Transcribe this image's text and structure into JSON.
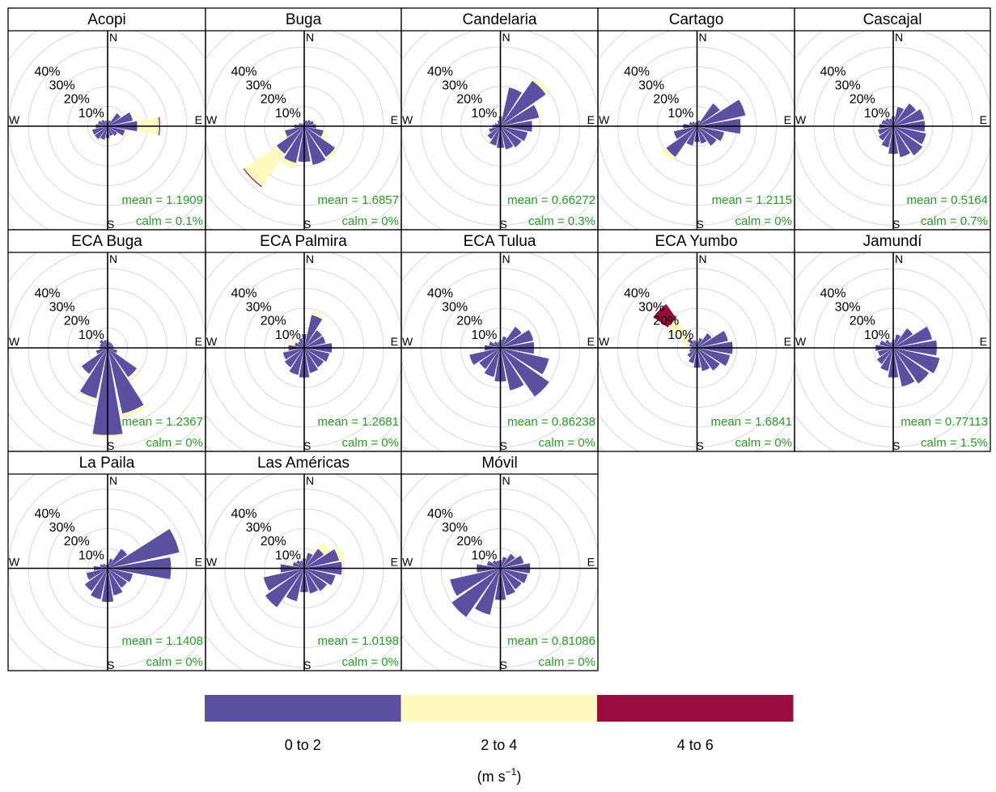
{
  "chart_data": {
    "type": "windrose",
    "directions": [
      "N",
      "NNE",
      "NE",
      "ENE",
      "E",
      "ESE",
      "SE",
      "SSE",
      "S",
      "SSW",
      "SW",
      "WSW",
      "W",
      "WNW",
      "NW",
      "NNW"
    ],
    "compass_labels": {
      "n": "N",
      "e": "E",
      "s": "S",
      "w": "W"
    },
    "ring_labels": [
      "10%",
      "20%",
      "30%",
      "40%"
    ],
    "ring_values": [
      10,
      20,
      30,
      40
    ],
    "rmax": 50,
    "bins": [
      {
        "label": "0 to 2",
        "color": "#5b4fa0"
      },
      {
        "label": "2 to 4",
        "color": "#fefac0"
      },
      {
        "label": "4 to 6",
        "color": "#990c3e"
      }
    ],
    "unit_label": "(m s",
    "unit_exponent": "−1",
    "unit_close": ")",
    "panels": [
      {
        "name": "Acopi",
        "mean": "mean = 1.1909",
        "calm": "calm = 0.1%",
        "freq": [
          [
            2,
            0,
            0
          ],
          [
            3,
            0,
            0
          ],
          [
            8,
            0,
            0
          ],
          [
            13,
            1,
            0
          ],
          [
            15,
            11,
            0.5
          ],
          [
            9,
            1,
            0
          ],
          [
            6,
            0,
            0
          ],
          [
            5,
            0,
            0
          ],
          [
            6,
            0,
            0
          ],
          [
            7,
            0,
            0
          ],
          [
            8,
            0,
            0
          ],
          [
            8,
            0,
            0
          ],
          [
            6,
            0,
            0
          ],
          [
            5,
            0,
            0
          ],
          [
            4,
            0,
            0
          ],
          [
            3,
            0,
            0
          ]
        ]
      },
      {
        "name": "Buga",
        "mean": "mean = 1.6857",
        "calm": "calm = 0%",
        "freq": [
          [
            2,
            0,
            0
          ],
          [
            3,
            0,
            0
          ],
          [
            4,
            0,
            0
          ],
          [
            5,
            1,
            0
          ],
          [
            6,
            1,
            0
          ],
          [
            10,
            2,
            0
          ],
          [
            19,
            2,
            0
          ],
          [
            20,
            0,
            0
          ],
          [
            18,
            0,
            0
          ],
          [
            19,
            3,
            0
          ],
          [
            17,
            20,
            0.5
          ],
          [
            10,
            1,
            0
          ],
          [
            5,
            0,
            0
          ],
          [
            3,
            0,
            0
          ],
          [
            2,
            0,
            0
          ],
          [
            1,
            0,
            0
          ]
        ]
      },
      {
        "name": "Candelaria",
        "mean": "mean = 0.66272",
        "calm": "calm = 0.3%",
        "freq": [
          [
            5,
            0,
            0
          ],
          [
            20,
            0,
            0
          ],
          [
            28,
            2,
            0
          ],
          [
            20,
            1,
            0
          ],
          [
            16,
            0,
            0
          ],
          [
            14,
            0,
            0
          ],
          [
            13,
            0,
            0
          ],
          [
            12,
            0,
            0
          ],
          [
            11,
            0,
            0
          ],
          [
            10,
            0,
            0
          ],
          [
            8,
            0,
            0
          ],
          [
            6,
            0,
            0
          ],
          [
            4,
            0,
            0
          ],
          [
            3,
            0,
            0
          ],
          [
            2,
            0,
            0
          ],
          [
            3,
            0,
            0
          ]
        ]
      },
      {
        "name": "Cartago",
        "mean": "mean = 1.2115",
        "calm": "calm = 0%",
        "freq": [
          [
            2,
            0,
            0
          ],
          [
            3,
            0,
            0
          ],
          [
            14,
            0,
            0
          ],
          [
            25,
            0,
            0
          ],
          [
            22,
            0,
            0
          ],
          [
            14,
            1,
            0
          ],
          [
            12,
            0,
            0
          ],
          [
            9,
            0,
            0
          ],
          [
            8,
            0,
            0
          ],
          [
            10,
            0,
            0
          ],
          [
            19,
            3,
            0
          ],
          [
            12,
            0,
            0
          ],
          [
            7,
            0,
            0
          ],
          [
            4,
            0,
            0
          ],
          [
            3,
            0,
            0
          ],
          [
            2,
            0,
            0
          ]
        ]
      },
      {
        "name": "Cascajal",
        "mean": "mean = 0.5164",
        "calm": "calm = 0.7%",
        "freq": [
          [
            5,
            0,
            0
          ],
          [
            10,
            0,
            0
          ],
          [
            14,
            0,
            0
          ],
          [
            16,
            0,
            0
          ],
          [
            16,
            0,
            0
          ],
          [
            17,
            0,
            0
          ],
          [
            18,
            0,
            0
          ],
          [
            16,
            0,
            0
          ],
          [
            14,
            0,
            0
          ],
          [
            11,
            0,
            0
          ],
          [
            9,
            0,
            0
          ],
          [
            8,
            0,
            0
          ],
          [
            7,
            0,
            0
          ],
          [
            6,
            0,
            0
          ],
          [
            5,
            0,
            0
          ],
          [
            4,
            0,
            0
          ]
        ]
      },
      {
        "name": "ECA Buga",
        "mean": "mean = 1.2367",
        "calm": "calm = 0%",
        "freq": [
          [
            4,
            0,
            0
          ],
          [
            3,
            0,
            0
          ],
          [
            3,
            0,
            0
          ],
          [
            3,
            0,
            0
          ],
          [
            3,
            0,
            0
          ],
          [
            5,
            0,
            0
          ],
          [
            18,
            1,
            0
          ],
          [
            34,
            2,
            0
          ],
          [
            44,
            1,
            0
          ],
          [
            26,
            1,
            0
          ],
          [
            16,
            0,
            0
          ],
          [
            6,
            0,
            0
          ],
          [
            4,
            0,
            0
          ],
          [
            4,
            0,
            0
          ],
          [
            5,
            0,
            0
          ],
          [
            4,
            0,
            0
          ]
        ]
      },
      {
        "name": "ECA Palmira",
        "mean": "mean = 1.2681",
        "calm": "calm = 0%",
        "freq": [
          [
            7,
            0,
            0
          ],
          [
            17,
            2,
            0
          ],
          [
            11,
            1,
            0
          ],
          [
            11,
            0,
            0
          ],
          [
            14,
            0,
            0
          ],
          [
            13,
            0,
            0
          ],
          [
            12,
            0,
            0
          ],
          [
            13,
            0,
            0
          ],
          [
            15,
            0,
            0
          ],
          [
            14,
            0,
            0
          ],
          [
            12,
            0,
            0
          ],
          [
            11,
            0,
            0
          ],
          [
            8,
            0,
            0
          ],
          [
            5,
            2,
            0
          ],
          [
            4,
            1,
            0
          ],
          [
            5,
            0,
            0
          ]
        ]
      },
      {
        "name": "ECA Tulua",
        "mean": "mean = 0.86238",
        "calm": "calm = 0%",
        "freq": [
          [
            4,
            0,
            0
          ],
          [
            6,
            0,
            0
          ],
          [
            13,
            0,
            0
          ],
          [
            17,
            0,
            0
          ],
          [
            17,
            0,
            0
          ],
          [
            25,
            0,
            0
          ],
          [
            30,
            0,
            0
          ],
          [
            22,
            0,
            0
          ],
          [
            17,
            0,
            0
          ],
          [
            15,
            0,
            0
          ],
          [
            13,
            0,
            0
          ],
          [
            16,
            0,
            0
          ],
          [
            8,
            0,
            0
          ],
          [
            6,
            0,
            0
          ],
          [
            4,
            0,
            0
          ],
          [
            3,
            0,
            0
          ]
        ]
      },
      {
        "name": "ECA Yumbo",
        "mean": "mean = 1.6841",
        "calm": "calm = 0%",
        "freq": [
          [
            3,
            0,
            0
          ],
          [
            5,
            0,
            0
          ],
          [
            9,
            0,
            0
          ],
          [
            16,
            0,
            0
          ],
          [
            18,
            0,
            0
          ],
          [
            17,
            0,
            0
          ],
          [
            14,
            0,
            0
          ],
          [
            12,
            0,
            0
          ],
          [
            10,
            0,
            0
          ],
          [
            8,
            0,
            0
          ],
          [
            6,
            0,
            0
          ],
          [
            4,
            0,
            0
          ],
          [
            3,
            0,
            0
          ],
          [
            4,
            4,
            0
          ],
          [
            6,
            12,
            9
          ],
          [
            4,
            0,
            0
          ]
        ]
      },
      {
        "name": "Jamundí",
        "mean": "mean = 0.77113",
        "calm": "calm = 1.5%",
        "freq": [
          [
            4,
            0,
            0
          ],
          [
            7,
            0,
            0
          ],
          [
            12,
            0,
            0
          ],
          [
            20,
            0,
            0
          ],
          [
            22,
            0,
            0
          ],
          [
            24,
            0,
            0
          ],
          [
            22,
            0,
            0
          ],
          [
            20,
            0,
            0
          ],
          [
            15,
            0,
            0
          ],
          [
            12,
            0,
            0
          ],
          [
            10,
            0,
            0
          ],
          [
            8,
            0,
            0
          ],
          [
            9,
            0,
            0
          ],
          [
            7,
            0,
            0
          ],
          [
            5,
            0,
            0
          ],
          [
            3,
            0,
            0
          ]
        ]
      },
      {
        "name": "La  Paila",
        "mean": "mean = 1.1408",
        "calm": "calm = 0%",
        "freq": [
          [
            2,
            0,
            0
          ],
          [
            5,
            0,
            0
          ],
          [
            12,
            0,
            0
          ],
          [
            37,
            0,
            0
          ],
          [
            32,
            0,
            0
          ],
          [
            13,
            0,
            0
          ],
          [
            12,
            0,
            0
          ],
          [
            14,
            0,
            0
          ],
          [
            17,
            0,
            0
          ],
          [
            16,
            0,
            0
          ],
          [
            14,
            0,
            0
          ],
          [
            11,
            0,
            0
          ],
          [
            7,
            0,
            0
          ],
          [
            4,
            0,
            0
          ],
          [
            3,
            0,
            0
          ],
          [
            2,
            0,
            0
          ]
        ]
      },
      {
        "name": "Las Américas",
        "mean": "mean = 1.0198",
        "calm": "calm = 0%",
        "freq": [
          [
            5,
            0,
            0
          ],
          [
            8,
            1,
            0
          ],
          [
            12,
            4,
            0
          ],
          [
            18,
            3,
            0
          ],
          [
            19,
            0,
            0
          ],
          [
            16,
            0,
            0
          ],
          [
            14,
            0,
            0
          ],
          [
            13,
            0,
            0
          ],
          [
            12,
            0,
            0
          ],
          [
            17,
            0,
            0
          ],
          [
            24,
            0,
            0
          ],
          [
            21,
            0,
            0
          ],
          [
            12,
            0,
            0
          ],
          [
            6,
            0,
            0
          ],
          [
            5,
            0,
            0
          ],
          [
            4,
            0,
            0
          ]
        ]
      },
      {
        "name": "Móvil",
        "mean": "mean = 0.81086",
        "calm": "calm = 0%",
        "freq": [
          [
            4,
            0,
            0
          ],
          [
            6,
            0,
            0
          ],
          [
            9,
            0,
            0
          ],
          [
            12,
            0,
            0
          ],
          [
            15,
            0,
            0
          ],
          [
            14,
            0,
            0
          ],
          [
            13,
            0,
            0
          ],
          [
            14,
            0,
            0
          ],
          [
            16,
            0,
            0
          ],
          [
            24,
            0,
            0
          ],
          [
            30,
            0,
            0
          ],
          [
            26,
            0,
            0
          ],
          [
            12,
            0,
            0
          ],
          [
            7,
            0,
            0
          ],
          [
            5,
            0,
            0
          ],
          [
            4,
            0,
            0
          ]
        ]
      }
    ]
  }
}
